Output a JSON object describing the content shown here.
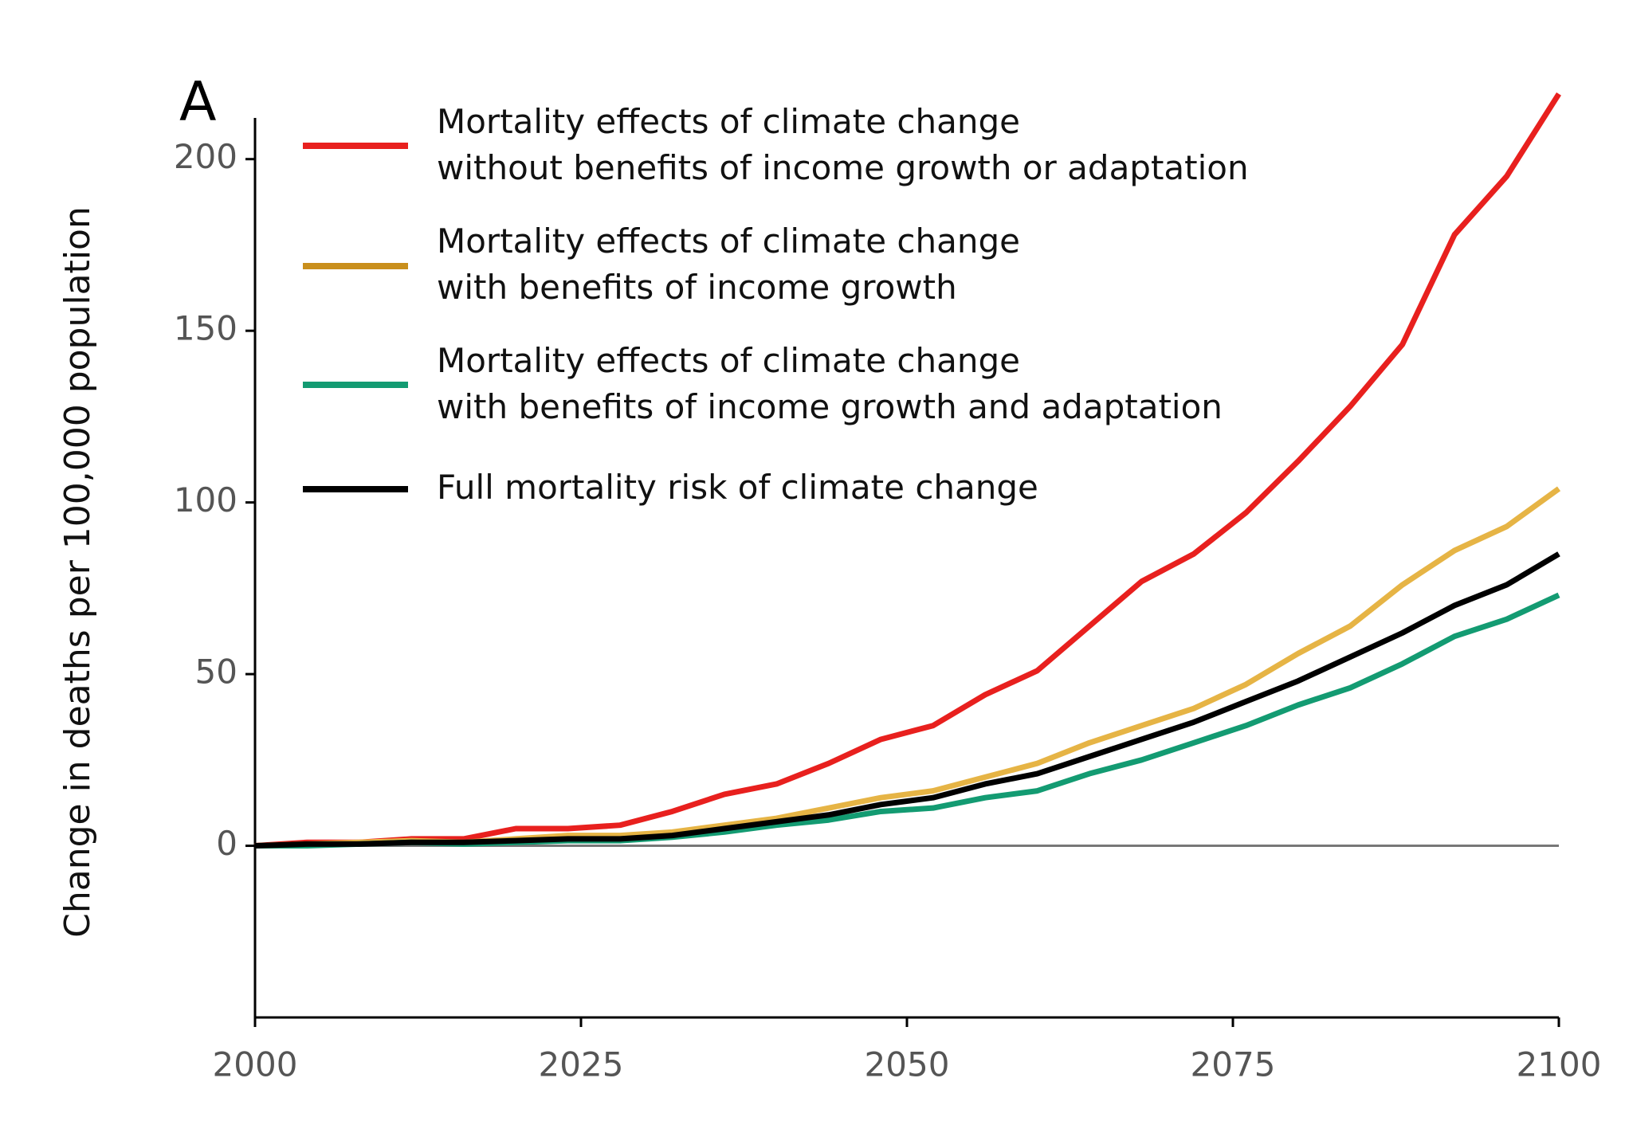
{
  "chart_data": {
    "type": "line",
    "panel_label": "A",
    "ylabel": "Change in deaths per 100,000 population",
    "x": [
      2000,
      2004,
      2008,
      2012,
      2016,
      2020,
      2024,
      2028,
      2032,
      2036,
      2040,
      2044,
      2048,
      2052,
      2056,
      2060,
      2064,
      2068,
      2072,
      2076,
      2080,
      2084,
      2088,
      2092,
      2096,
      2100
    ],
    "series": [
      {
        "name": "Mortality effects of climate change\nwithout benefits of income growth or adaptation",
        "color": "#e8201e",
        "legend_color": "#e8201e",
        "values": [
          0,
          1,
          1,
          2,
          2,
          5,
          5,
          6,
          10,
          15,
          18,
          24,
          31,
          35,
          44,
          51,
          64,
          77,
          85,
          97,
          112,
          128,
          146,
          178,
          195,
          219
        ]
      },
      {
        "name": "Mortality effects of climate change\nwith benefits of income growth",
        "color": "#e6b445",
        "legend_color": "#c98f1c",
        "values": [
          0,
          0.5,
          1,
          1.5,
          1,
          2,
          3,
          3,
          4,
          6,
          8,
          11,
          14,
          16,
          20,
          24,
          30,
          35,
          40,
          47,
          56,
          64,
          76,
          86,
          93,
          104
        ]
      },
      {
        "name": "Mortality effects of climate change\nwith benefits of income growth and adaptation",
        "color": "#139b72",
        "legend_color": "#139b72",
        "values": [
          0,
          0,
          0.5,
          1,
          0.5,
          1,
          1.5,
          1.5,
          2.5,
          4,
          6,
          7.5,
          10,
          11,
          14,
          16,
          21,
          25,
          30,
          35,
          41,
          46,
          53,
          61,
          66,
          73
        ]
      },
      {
        "name": "Full mortality risk of climate change",
        "color": "#000000",
        "legend_color": "#000000",
        "values": [
          0,
          0.5,
          0.5,
          1,
          1,
          1.5,
          2,
          2,
          3,
          5,
          7,
          9,
          12,
          14,
          18,
          21,
          26,
          31,
          36,
          42,
          48,
          55,
          62,
          70,
          76,
          85
        ]
      }
    ],
    "xlim": [
      2000,
      2100
    ],
    "xticks": [
      2000,
      2025,
      2050,
      2075,
      2100
    ],
    "ylim": [
      -50,
      212
    ],
    "yticks": [
      0,
      50,
      100,
      150,
      200
    ]
  }
}
